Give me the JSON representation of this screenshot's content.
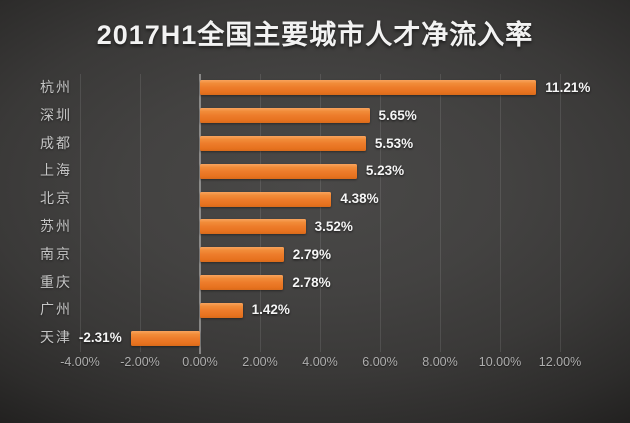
{
  "title": {
    "text": "2017H1全国主要城市人才净流入率"
  },
  "colors": {
    "title_text": "#f2f2f2",
    "bar_main": "#ed7c2b",
    "bar_highlight": "#f8a35d",
    "bar_shadow": "#d96a1a",
    "background_center": "#4a4948",
    "background_edge": "#171716",
    "gridline": "#515150",
    "zero_line": "#8f8f8f",
    "city_label": "#c6c6c6",
    "value_label": "#f5f5f5",
    "tick_label": "#aeaeae"
  },
  "chart_data": {
    "type": "bar",
    "orientation": "horizontal",
    "title": "2017H1全国主要城市人才净流入率",
    "categories": [
      "杭州",
      "深圳",
      "成都",
      "上海",
      "北京",
      "苏州",
      "南京",
      "重庆",
      "广州",
      "天津"
    ],
    "values": [
      11.21,
      5.65,
      5.53,
      5.23,
      4.38,
      3.52,
      2.79,
      2.78,
      1.42,
      -2.31
    ],
    "value_labels": [
      "11.21%",
      "5.65%",
      "5.53%",
      "5.23%",
      "4.38%",
      "3.52%",
      "2.79%",
      "2.78%",
      "1.42%",
      "-2.31%"
    ],
    "x_tick_labels": [
      "-4.00%",
      "-2.00%",
      "0.00%",
      "2.00%",
      "4.00%",
      "6.00%",
      "8.00%",
      "10.00%",
      "12.00%"
    ],
    "x_tick_values": [
      -4,
      -2,
      0,
      2,
      4,
      6,
      8,
      10,
      12
    ],
    "xlim": [
      -4,
      12
    ],
    "xlabel": "",
    "ylabel": "",
    "grid": "vertical",
    "legend_position": "none"
  }
}
